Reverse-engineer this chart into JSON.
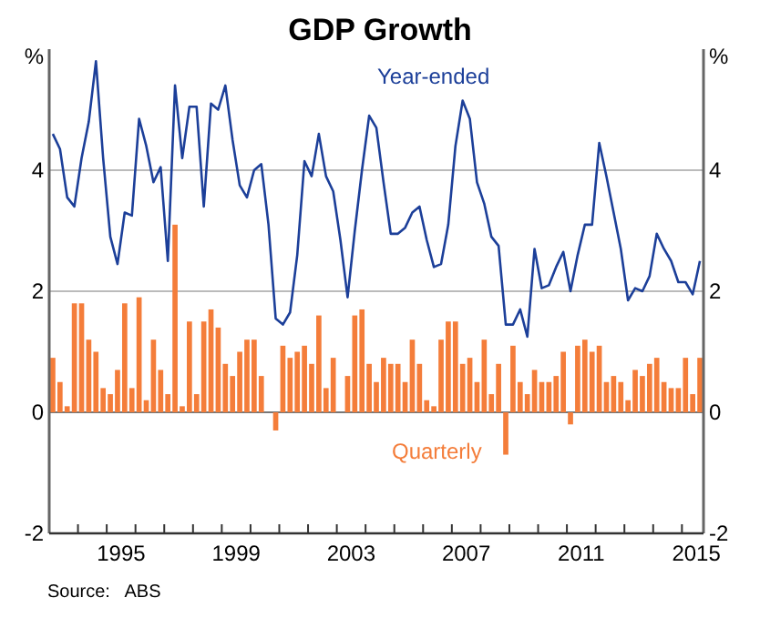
{
  "chart_data": {
    "type": "bar",
    "title": "GDP Growth",
    "ylabel": "%",
    "y2label": "%",
    "annotations": [
      "Source:   ABS"
    ],
    "x": [
      1993.125,
      1993.375,
      1993.625,
      1993.875,
      1994.125,
      1994.375,
      1994.625,
      1994.875,
      1995.125,
      1995.375,
      1995.625,
      1995.875,
      1996.125,
      1996.375,
      1996.625,
      1996.875,
      1997.125,
      1997.375,
      1997.625,
      1997.875,
      1998.125,
      1998.375,
      1998.625,
      1998.875,
      1999.125,
      1999.375,
      1999.625,
      1999.875,
      2000.125,
      2000.375,
      2000.625,
      2000.875,
      2001.125,
      2001.375,
      2001.625,
      2001.875,
      2002.125,
      2002.375,
      2002.625,
      2002.875,
      2003.125,
      2003.375,
      2003.625,
      2003.875,
      2004.125,
      2004.375,
      2004.625,
      2004.875,
      2005.125,
      2005.375,
      2005.625,
      2005.875,
      2006.125,
      2006.375,
      2006.625,
      2006.875,
      2007.125,
      2007.375,
      2007.625,
      2007.875,
      2008.125,
      2008.375,
      2008.625,
      2008.875,
      2009.125,
      2009.375,
      2009.625,
      2009.875,
      2010.125,
      2010.375,
      2010.625,
      2010.875,
      2011.125,
      2011.375,
      2011.625,
      2011.875,
      2012.125,
      2012.375,
      2012.625,
      2012.875,
      2013.125,
      2013.375,
      2013.625,
      2013.875,
      2014.125,
      2014.375,
      2014.625,
      2014.875,
      2015.125,
      2015.375,
      2015.625
    ],
    "series": [
      {
        "name": "Quarterly",
        "color": "#f47d3a",
        "values": [
          0.9,
          0.5,
          0.1,
          1.8,
          1.8,
          1.2,
          1.0,
          0.4,
          0.3,
          0.7,
          1.8,
          0.4,
          1.9,
          0.2,
          1.2,
          0.7,
          0.3,
          3.1,
          0.1,
          1.5,
          0.3,
          1.5,
          1.7,
          1.4,
          0.8,
          0.6,
          1.0,
          1.2,
          1.2,
          0.6,
          0.0,
          -0.3,
          1.1,
          0.9,
          1.0,
          1.1,
          0.8,
          1.6,
          0.4,
          0.9,
          0.0,
          0.6,
          1.6,
          1.7,
          0.8,
          0.5,
          0.9,
          0.8,
          0.8,
          0.5,
          1.2,
          0.8,
          0.2,
          0.1,
          1.2,
          1.5,
          1.5,
          0.8,
          0.9,
          0.5,
          1.2,
          0.3,
          0.8,
          -0.7,
          1.1,
          0.5,
          0.3,
          0.7,
          0.5,
          0.5,
          0.6,
          1.0,
          -0.2,
          1.1,
          1.2,
          1.0,
          1.1,
          0.5,
          0.6,
          0.5,
          0.2,
          0.7,
          0.6,
          0.8,
          0.9,
          0.5,
          0.4,
          0.4,
          0.9,
          0.3,
          0.9
        ]
      },
      {
        "name": "Year-ended",
        "type": "line",
        "color": "#1c3f99",
        "values": [
          4.6,
          4.35,
          3.55,
          3.4,
          4.2,
          4.8,
          5.8,
          4.2,
          2.9,
          2.45,
          3.3,
          3.25,
          4.85,
          4.4,
          3.8,
          4.05,
          2.5,
          5.4,
          4.2,
          5.05,
          5.05,
          3.4,
          5.1,
          5.0,
          5.4,
          4.5,
          3.75,
          3.55,
          4.0,
          4.1,
          3.1,
          1.55,
          1.45,
          1.65,
          2.6,
          4.15,
          3.9,
          4.6,
          3.9,
          3.65,
          2.85,
          1.9,
          3.0,
          4.0,
          4.9,
          4.7,
          3.8,
          2.95,
          2.95,
          3.05,
          3.3,
          3.4,
          2.85,
          2.4,
          2.45,
          3.1,
          4.4,
          5.15,
          4.85,
          3.8,
          3.45,
          2.9,
          2.75,
          1.45,
          1.45,
          1.7,
          1.25,
          2.7,
          2.05,
          2.1,
          2.4,
          2.65,
          2.0,
          2.6,
          3.1,
          3.1,
          4.45,
          3.9,
          3.3,
          2.7,
          1.85,
          2.05,
          2.0,
          2.25,
          2.95,
          2.7,
          2.5,
          2.15,
          2.15,
          1.95,
          2.5
        ]
      }
    ],
    "xlim": [
      1993,
      2015.75
    ],
    "xticks": [
      {
        "value": 1994,
        "label": null
      },
      {
        "value": 1995,
        "label": null
      },
      {
        "value": 1996,
        "label": null
      },
      {
        "value": 1997,
        "label": null
      },
      {
        "value": 1998,
        "label": null
      },
      {
        "value": 1999,
        "label": null
      },
      {
        "value": 2000,
        "label": null
      },
      {
        "value": 2001,
        "label": null
      },
      {
        "value": 2002,
        "label": null
      },
      {
        "value": 2003,
        "label": null
      },
      {
        "value": 2004,
        "label": null
      },
      {
        "value": 2005,
        "label": null
      },
      {
        "value": 2006,
        "label": null
      },
      {
        "value": 2007,
        "label": null
      },
      {
        "value": 2008,
        "label": null
      },
      {
        "value": 2009,
        "label": null
      },
      {
        "value": 2010,
        "label": null
      },
      {
        "value": 2011,
        "label": null
      },
      {
        "value": 2012,
        "label": null
      },
      {
        "value": 2013,
        "label": null
      },
      {
        "value": 2014,
        "label": null
      },
      {
        "value": 2015,
        "label": null
      },
      {
        "value": 1995.5,
        "label": "1995"
      },
      {
        "value": 1999.5,
        "label": "1999"
      },
      {
        "value": 2003.5,
        "label": "2003"
      },
      {
        "value": 2007.5,
        "label": "2007"
      },
      {
        "value": 2011.5,
        "label": "2011"
      },
      {
        "value": 2015.5,
        "label": "2015"
      }
    ],
    "ylim": [
      -2,
      6
    ],
    "yticks": [
      -2,
      0,
      2,
      4
    ],
    "y2lim": [
      -2,
      6
    ],
    "y2ticks": [
      -2,
      0,
      2,
      4
    ],
    "grid": "y",
    "legend": false
  }
}
